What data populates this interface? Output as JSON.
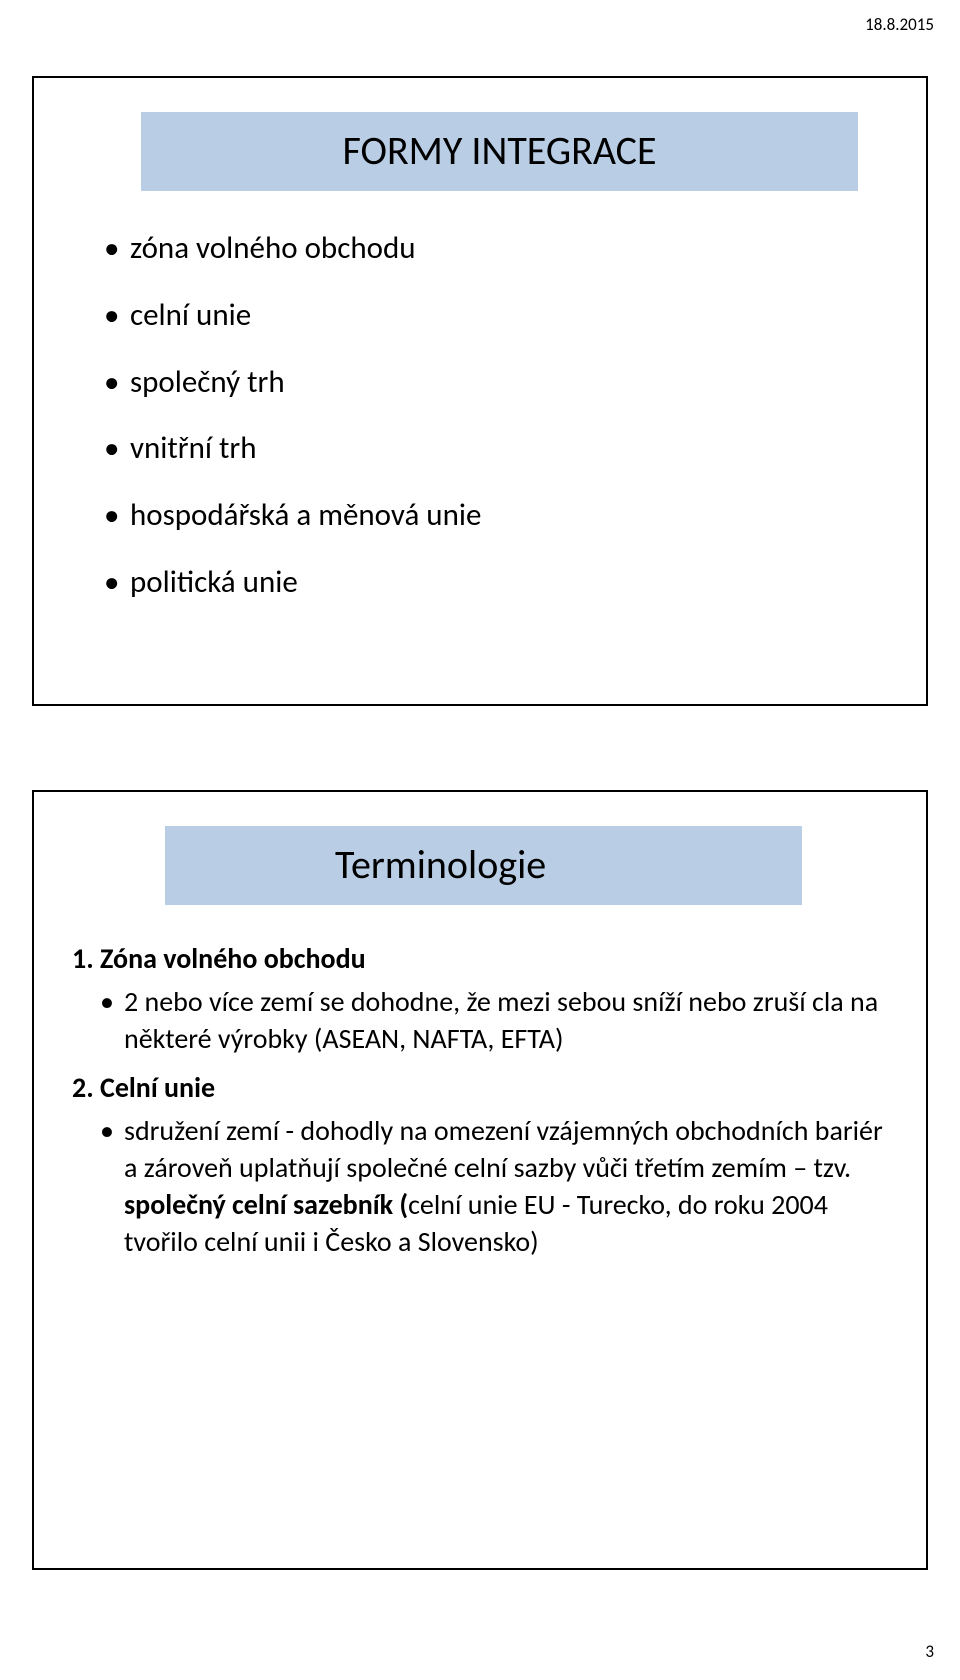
{
  "meta": {
    "date": "18.8.2015",
    "page_number": "3"
  },
  "colors": {
    "title_bg": "#b9cde5",
    "title_border_left": "#ffffff",
    "slide_border": "#000000",
    "page_bg": "#ffffff",
    "text": "#000000"
  },
  "typography": {
    "title_fontsize_pt": 30,
    "body_fontsize_slide1_pt": 23,
    "body_fontsize_slide2_pt": 21,
    "heading_weight": 700
  },
  "slide1": {
    "title": "FORMY INTEGRACE",
    "bullets": [
      "zóna volného obchodu",
      "celní unie",
      "společný trh",
      "vnitřní trh",
      "hospodářská a měnová unie",
      "politická unie"
    ]
  },
  "slide2": {
    "title": "Terminologie",
    "items": [
      {
        "heading": "1. Zóna volného obchodu",
        "bullets": [
          "2 nebo více zemí se dohodne, že mezi sebou sníží nebo zruší cla na některé výrobky (ASEAN, NAFTA, EFTA)"
        ]
      },
      {
        "heading": "2. Celní unie",
        "bullets_rich": [
          {
            "prefix": "sdružení zemí - dohodly na omezení vzájemných obchodních bariér a zároveň uplatňují společné celní sazby vůči třetím zemím – tzv. ",
            "bold": "společný celní sazebník (",
            "suffix": "celní unie EU - Turecko, do roku 2004 tvořilo celní unii i Česko a Slovensko)"
          }
        ]
      }
    ]
  }
}
